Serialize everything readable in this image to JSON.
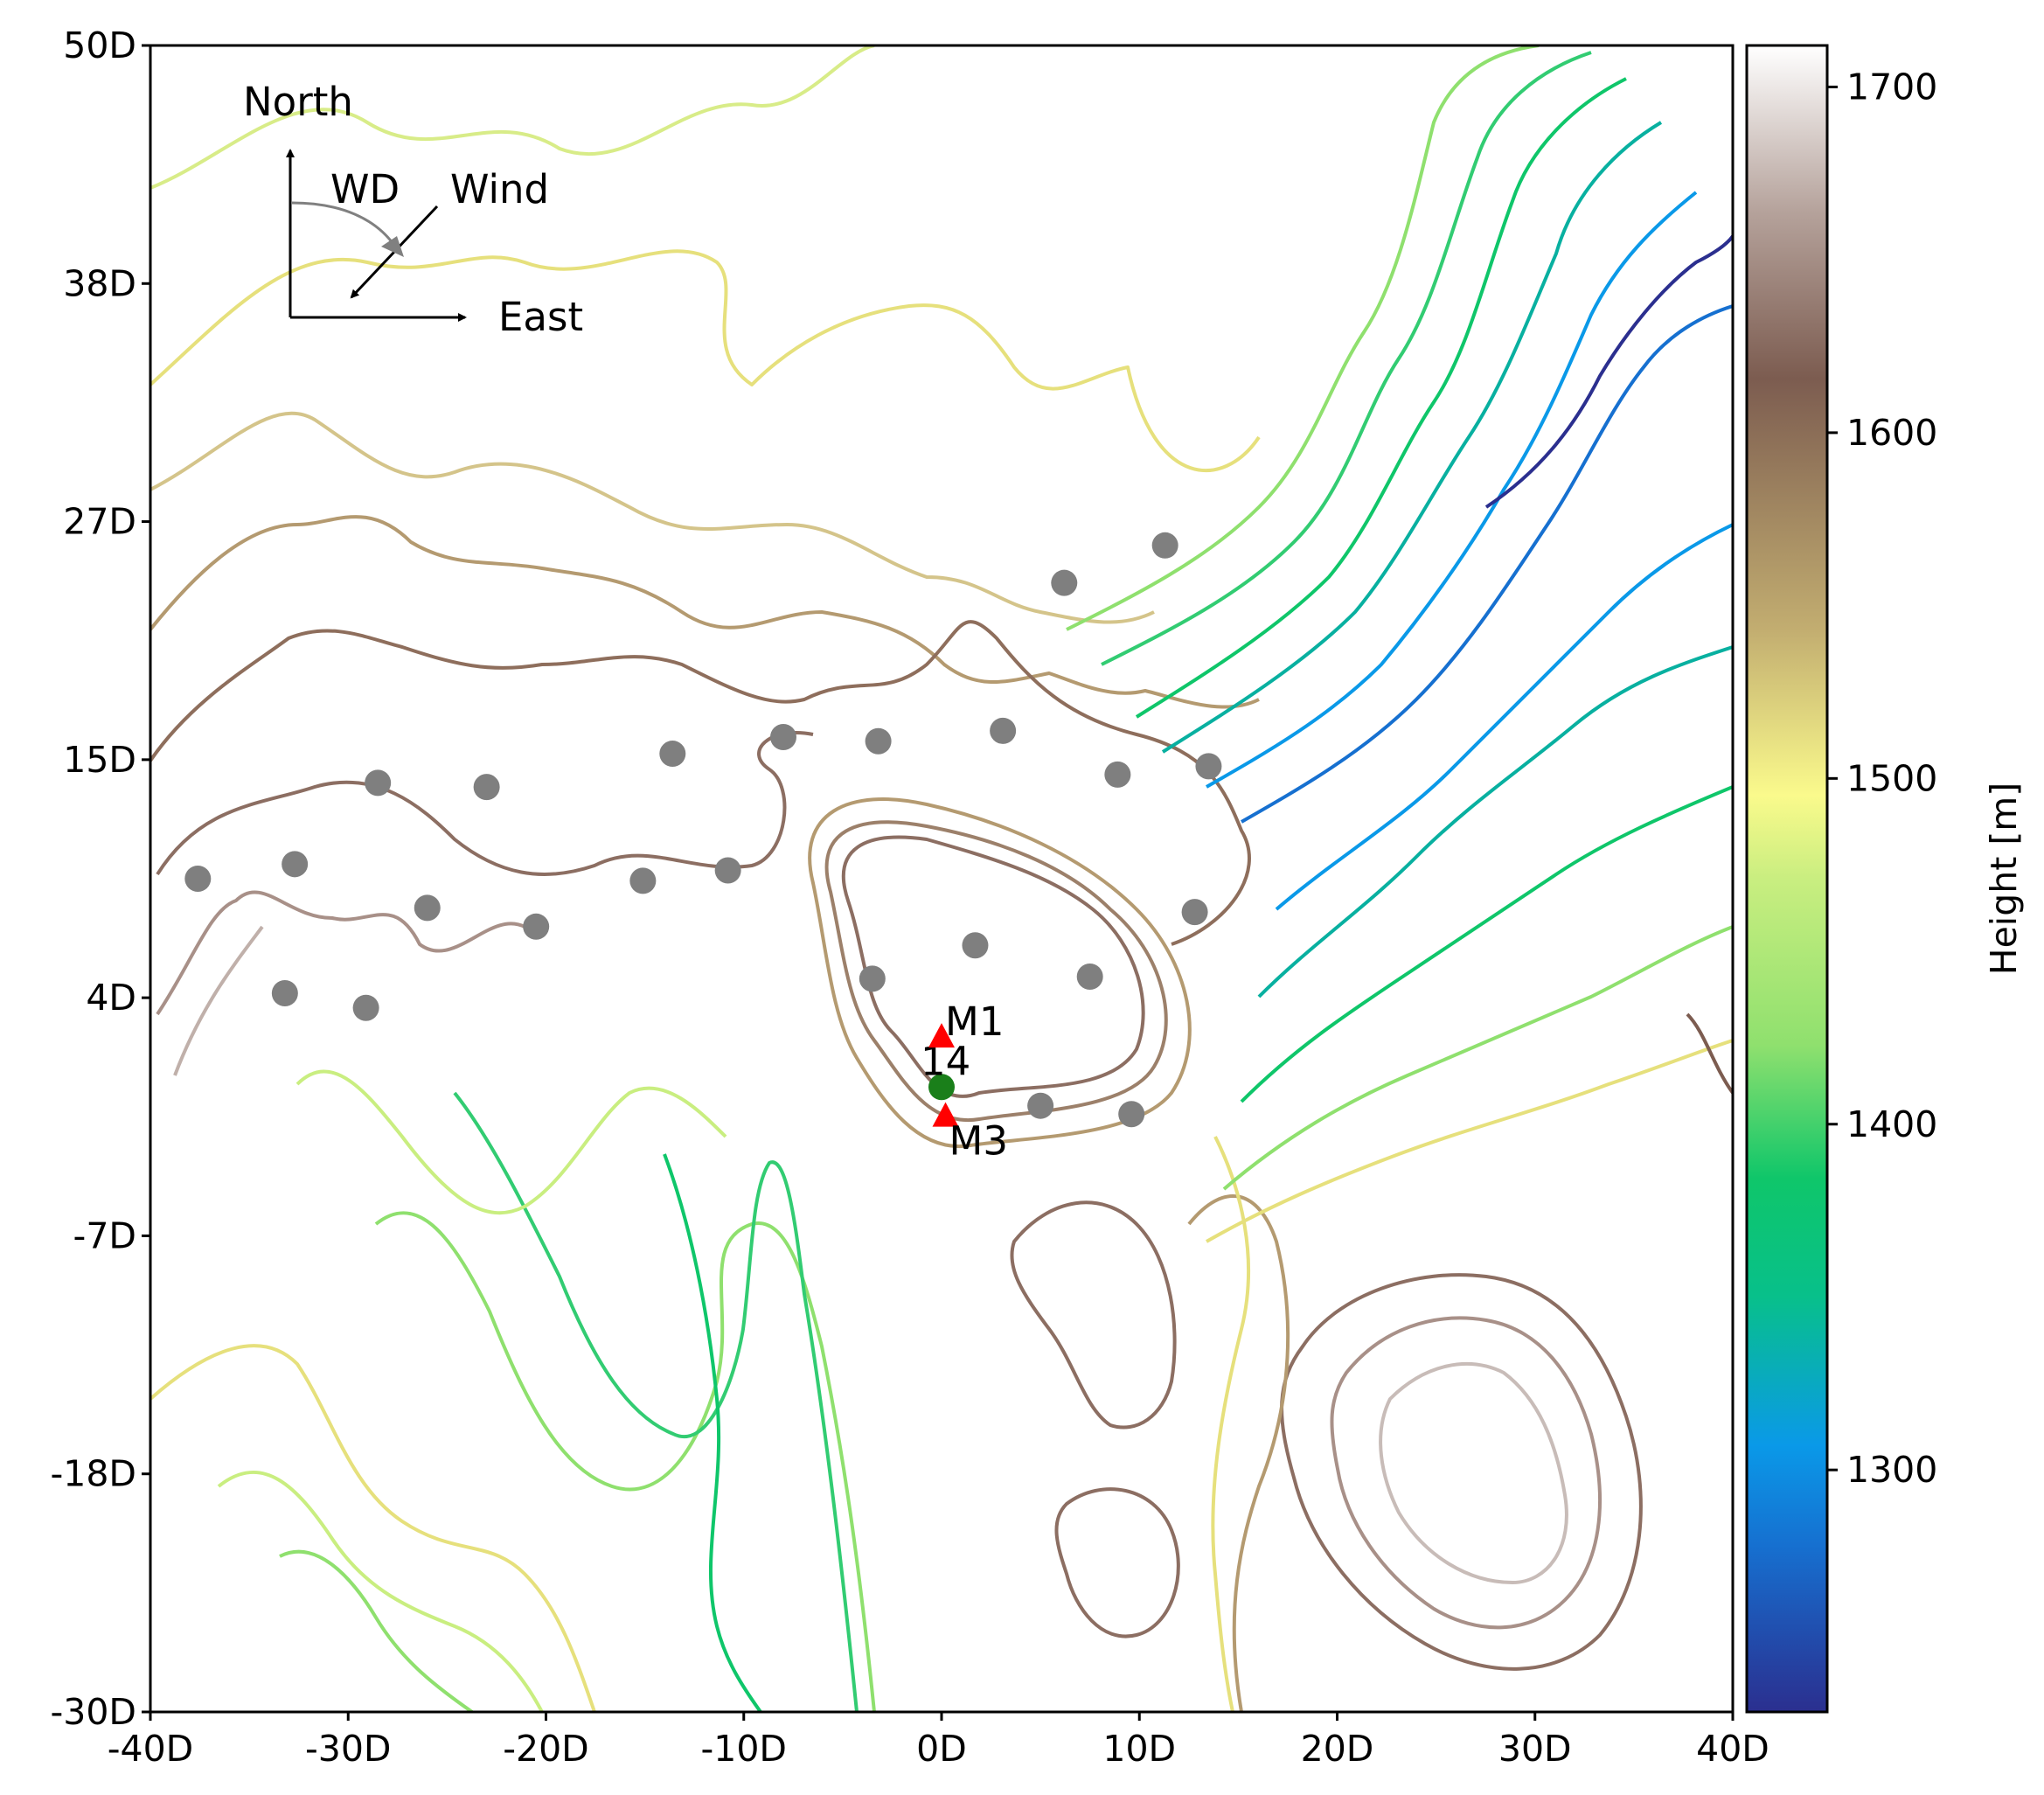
{
  "chart_data": {
    "type": "contour",
    "x_ticks": [
      "-40D",
      "-30D",
      "-20D",
      "-10D",
      "0D",
      "10D",
      "20D",
      "30D",
      "40D"
    ],
    "y_ticks": [
      "50D",
      "38D",
      "27D",
      "15D",
      "4D",
      "-7D",
      "-18D",
      "-30D"
    ],
    "xlim": [
      -40,
      40
    ],
    "ylim": [
      -30,
      50
    ],
    "colorbar": {
      "label": "Height [m]",
      "ticks": [
        "1700",
        "1600",
        "1500",
        "1400",
        "1300"
      ],
      "range": [
        1230,
        1712
      ],
      "colors": [
        "#2b2f8f",
        "#0a99e8",
        "#0fc66a",
        "#8fe06e",
        "#fafa8c",
        "#b9a06e",
        "#7c5c50",
        "#c5b6b0",
        "#ffffff"
      ]
    },
    "turbines": [
      {
        "x": 6.2,
        "y": 24.2
      },
      {
        "x": 11.3,
        "y": 26.0
      },
      {
        "x": -13.6,
        "y": 16.0
      },
      {
        "x": -8.0,
        "y": 16.8
      },
      {
        "x": -3.2,
        "y": 16.6
      },
      {
        "x": 3.1,
        "y": 17.1
      },
      {
        "x": 8.9,
        "y": 15.0
      },
      {
        "x": 13.5,
        "y": 15.4
      },
      {
        "x": -28.5,
        "y": 14.6
      },
      {
        "x": -23.0,
        "y": 14.4
      },
      {
        "x": -37.6,
        "y": 10.0
      },
      {
        "x": -32.7,
        "y": 10.7
      },
      {
        "x": -15.1,
        "y": 9.9
      },
      {
        "x": -10.8,
        "y": 10.4
      },
      {
        "x": -26.0,
        "y": 8.6
      },
      {
        "x": -20.5,
        "y": 7.7
      },
      {
        "x": 12.8,
        "y": 8.4
      },
      {
        "x": 1.7,
        "y": 6.8
      },
      {
        "x": -3.5,
        "y": 5.2
      },
      {
        "x": 7.5,
        "y": 5.3
      },
      {
        "x": -33.2,
        "y": 4.5
      },
      {
        "x": -29.1,
        "y": 3.8
      },
      {
        "x": 5.0,
        "y": -0.9
      },
      {
        "x": 9.6,
        "y": -1.3
      }
    ],
    "highlight_turbine": {
      "label": "14",
      "x": 0.0,
      "y": 0.0
    },
    "masts": [
      {
        "label": "M1",
        "x": 0.0,
        "y": 2.4
      },
      {
        "label": "M3",
        "x": 0.2,
        "y": -1.4
      }
    ],
    "compass": {
      "north": "North",
      "east": "East",
      "wd": "WD",
      "wind": "Wind"
    }
  }
}
